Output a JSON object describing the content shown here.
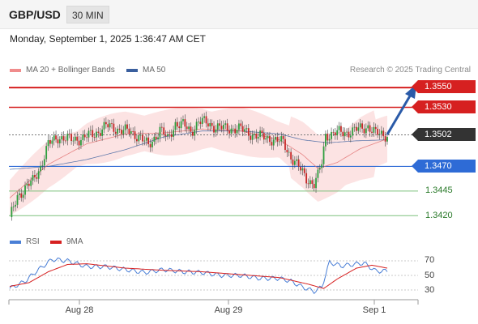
{
  "header": {
    "pair": "GBP/USD",
    "timeframe": "30 MIN"
  },
  "datetime": "Monday, September 1, 2025 1:36:47 AM CET",
  "legend": {
    "items": [
      {
        "label": "MA 20 + Bollinger Bands",
        "color": "#f08c8c"
      },
      {
        "label": "MA 50",
        "color": "#3a5f9e"
      }
    ],
    "credit": "Research © 2025 Trading Central"
  },
  "levels": {
    "r2": {
      "label": "1.3550",
      "value": 1.355,
      "color": "#d62020"
    },
    "r1": {
      "label": "1.3530",
      "value": 1.353,
      "color": "#d62020"
    },
    "current": {
      "label": "1.3502",
      "value": 1.3502,
      "color": "#333333"
    },
    "s1": {
      "label": "1.3470",
      "value": 1.347,
      "color": "#2e6bd6"
    },
    "s2": {
      "label": "1.3445",
      "value": 1.3445,
      "color": "#2a7a2a"
    },
    "s3": {
      "label": "1.3420",
      "value": 1.342,
      "color": "#2a7a2a"
    }
  },
  "rsi": {
    "legend": [
      {
        "label": "RSI",
        "color": "#4a7fd6"
      },
      {
        "label": "9MA",
        "color": "#d62020"
      }
    ],
    "axis": [
      "70",
      "50",
      "30"
    ]
  },
  "xaxis": [
    "Aug 28",
    "Aug 29",
    "Sep 1"
  ],
  "chart_data": {
    "type": "candlestick",
    "ylim": [
      1.3412,
      1.356
    ],
    "price_keypoints": [
      [
        0,
        1.3416
      ],
      [
        4,
        1.344
      ],
      [
        8,
        1.3448
      ],
      [
        12,
        1.3455
      ],
      [
        16,
        1.347
      ],
      [
        20,
        1.3492
      ],
      [
        25,
        1.35
      ],
      [
        32,
        1.3497
      ],
      [
        38,
        1.3499
      ],
      [
        44,
        1.3503
      ],
      [
        50,
        1.3511
      ],
      [
        56,
        1.3508
      ],
      [
        62,
        1.3505
      ],
      [
        68,
        1.35
      ],
      [
        72,
        1.349
      ],
      [
        78,
        1.3508
      ],
      [
        82,
        1.3497
      ],
      [
        86,
        1.3514
      ],
      [
        90,
        1.3512
      ],
      [
        94,
        1.3505
      ],
      [
        98,
        1.3516
      ],
      [
        102,
        1.3514
      ],
      [
        106,
        1.3511
      ],
      [
        112,
        1.3508
      ],
      [
        118,
        1.3509
      ],
      [
        124,
        1.3504
      ],
      [
        130,
        1.35
      ],
      [
        136,
        1.3498
      ],
      [
        142,
        1.3494
      ],
      [
        146,
        1.348
      ],
      [
        150,
        1.3469
      ],
      [
        154,
        1.3458
      ],
      [
        158,
        1.3452
      ],
      [
        160,
        1.346
      ],
      [
        162,
        1.3474
      ],
      [
        164,
        1.3502
      ],
      [
        170,
        1.3504
      ],
      [
        176,
        1.3505
      ],
      [
        182,
        1.3508
      ],
      [
        186,
        1.3511
      ],
      [
        190,
        1.3503
      ],
      [
        196,
        1.3502
      ]
    ],
    "ma20_keypoints": [
      [
        0,
        1.3438
      ],
      [
        20,
        1.3472
      ],
      [
        40,
        1.3493
      ],
      [
        60,
        1.3503
      ],
      [
        80,
        1.3504
      ],
      [
        100,
        1.3508
      ],
      [
        120,
        1.3506
      ],
      [
        140,
        1.3497
      ],
      [
        152,
        1.3482
      ],
      [
        160,
        1.3468
      ],
      [
        170,
        1.3474
      ],
      [
        182,
        1.3488
      ],
      [
        196,
        1.3498
      ]
    ],
    "ma50_keypoints": [
      [
        0,
        1.3467
      ],
      [
        20,
        1.347
      ],
      [
        40,
        1.3477
      ],
      [
        60,
        1.3487
      ],
      [
        80,
        1.35
      ],
      [
        100,
        1.3506
      ],
      [
        120,
        1.3506
      ],
      [
        140,
        1.3503
      ],
      [
        152,
        1.3497
      ],
      [
        165,
        1.3494
      ],
      [
        180,
        1.3496
      ],
      [
        196,
        1.3497
      ]
    ],
    "rsi_keypoints": [
      [
        0,
        32
      ],
      [
        8,
        42
      ],
      [
        14,
        56
      ],
      [
        22,
        72
      ],
      [
        30,
        70
      ],
      [
        40,
        62
      ],
      [
        50,
        62
      ],
      [
        60,
        58
      ],
      [
        70,
        54
      ],
      [
        80,
        58
      ],
      [
        90,
        55
      ],
      [
        100,
        54
      ],
      [
        110,
        50
      ],
      [
        120,
        50
      ],
      [
        130,
        46
      ],
      [
        140,
        46
      ],
      [
        146,
        42
      ],
      [
        152,
        34
      ],
      [
        158,
        28
      ],
      [
        162,
        34
      ],
      [
        166,
        68
      ],
      [
        172,
        63
      ],
      [
        178,
        65
      ],
      [
        184,
        67
      ],
      [
        190,
        56
      ],
      [
        196,
        56
      ]
    ],
    "rsi9_keypoints": [
      [
        0,
        35
      ],
      [
        10,
        40
      ],
      [
        20,
        55
      ],
      [
        30,
        65
      ],
      [
        40,
        66
      ],
      [
        60,
        60
      ],
      [
        80,
        57
      ],
      [
        100,
        55
      ],
      [
        120,
        51
      ],
      [
        140,
        47
      ],
      [
        155,
        38
      ],
      [
        163,
        32
      ],
      [
        170,
        45
      ],
      [
        180,
        60
      ],
      [
        188,
        64
      ],
      [
        196,
        60
      ]
    ]
  }
}
